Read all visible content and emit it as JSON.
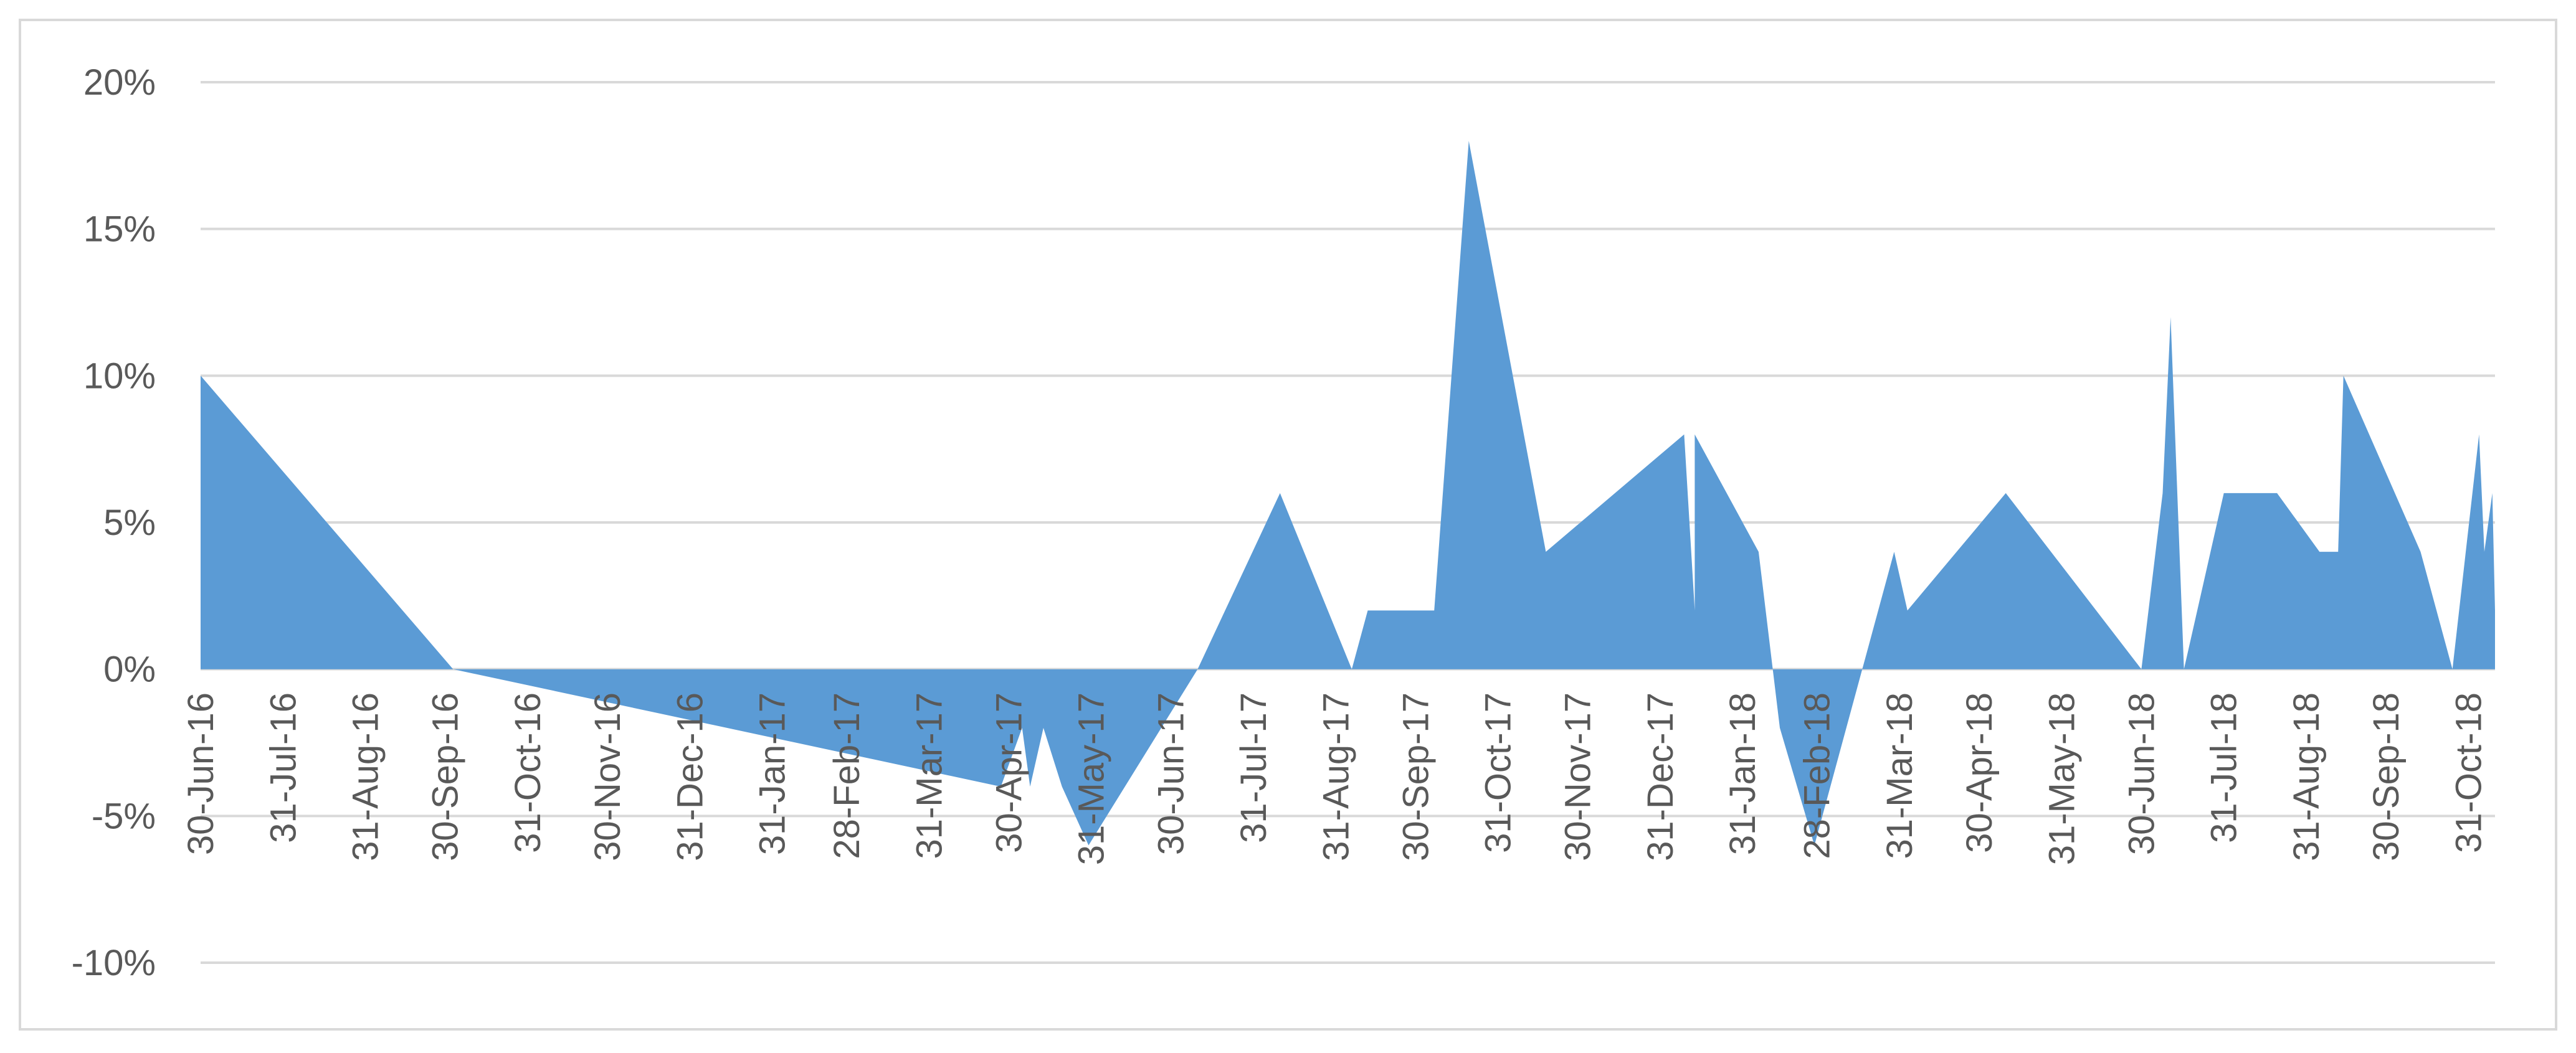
{
  "chart_data": {
    "type": "area",
    "title": "",
    "xlabel": "",
    "ylabel": "",
    "ylim": [
      -0.1,
      0.2
    ],
    "xlim": [
      "2016-06-30",
      "2018-11-10"
    ],
    "grid": true,
    "legend": "none",
    "fill_color": "#5b9bd5",
    "y_ticks": [
      {
        "value": 0.2,
        "label": "20%"
      },
      {
        "value": 0.15,
        "label": "15%"
      },
      {
        "value": 0.1,
        "label": "10%"
      },
      {
        "value": 0.05,
        "label": "5%"
      },
      {
        "value": 0.0,
        "label": "0%"
      },
      {
        "value": -0.05,
        "label": "-5%"
      },
      {
        "value": -0.1,
        "label": "-10%"
      }
    ],
    "x_ticks": [
      {
        "date": "2016-06-30",
        "label": "30-Jun-16"
      },
      {
        "date": "2016-07-31",
        "label": "31-Jul-16"
      },
      {
        "date": "2016-08-31",
        "label": "31-Aug-16"
      },
      {
        "date": "2016-09-30",
        "label": "30-Sep-16"
      },
      {
        "date": "2016-10-31",
        "label": "31-Oct-16"
      },
      {
        "date": "2016-11-30",
        "label": "30-Nov-16"
      },
      {
        "date": "2016-12-31",
        "label": "31-Dec-16"
      },
      {
        "date": "2017-01-31",
        "label": "31-Jan-17"
      },
      {
        "date": "2017-02-28",
        "label": "28-Feb-17"
      },
      {
        "date": "2017-03-31",
        "label": "31-Mar-17"
      },
      {
        "date": "2017-04-30",
        "label": "30-Apr-17"
      },
      {
        "date": "2017-05-31",
        "label": "31-May-17"
      },
      {
        "date": "2017-06-30",
        "label": "30-Jun-17"
      },
      {
        "date": "2017-07-31",
        "label": "31-Jul-17"
      },
      {
        "date": "2017-08-31",
        "label": "31-Aug-17"
      },
      {
        "date": "2017-09-30",
        "label": "30-Sep-17"
      },
      {
        "date": "2017-10-31",
        "label": "31-Oct-17"
      },
      {
        "date": "2017-11-30",
        "label": "30-Nov-17"
      },
      {
        "date": "2017-12-31",
        "label": "31-Dec-17"
      },
      {
        "date": "2018-01-31",
        "label": "31-Jan-18"
      },
      {
        "date": "2018-02-28",
        "label": "28-Feb-18"
      },
      {
        "date": "2018-03-31",
        "label": "31-Mar-18"
      },
      {
        "date": "2018-04-30",
        "label": "30-Apr-18"
      },
      {
        "date": "2018-05-31",
        "label": "31-May-18"
      },
      {
        "date": "2018-06-30",
        "label": "30-Jun-18"
      },
      {
        "date": "2018-07-31",
        "label": "31-Jul-18"
      },
      {
        "date": "2018-08-31",
        "label": "31-Aug-18"
      },
      {
        "date": "2018-09-30",
        "label": "30-Sep-18"
      },
      {
        "date": "2018-10-31",
        "label": "31-Oct-18"
      }
    ],
    "series": [
      {
        "points": [
          {
            "x": "2016-06-30",
            "y": 0.1
          },
          {
            "x": "2016-10-03",
            "y": 0.0
          },
          {
            "x": "2017-04-27",
            "y": -0.04
          },
          {
            "x": "2017-05-05",
            "y": -0.02
          },
          {
            "x": "2017-05-08",
            "y": -0.04
          },
          {
            "x": "2017-05-13",
            "y": -0.02
          },
          {
            "x": "2017-05-20",
            "y": -0.04
          },
          {
            "x": "2017-05-30",
            "y": -0.06
          },
          {
            "x": "2017-07-10",
            "y": 0.0
          },
          {
            "x": "2017-08-10",
            "y": 0.06
          },
          {
            "x": "2017-09-06",
            "y": 0.0
          },
          {
            "x": "2017-09-12",
            "y": 0.02
          },
          {
            "x": "2017-10-07",
            "y": 0.02
          },
          {
            "x": "2017-10-20",
            "y": 0.18
          },
          {
            "x": "2017-11-18",
            "y": 0.04
          },
          {
            "x": "2018-01-09",
            "y": 0.08
          },
          {
            "x": "2018-01-13",
            "y": 0.02
          },
          {
            "x": "2018-01-13",
            "y": 0.08
          },
          {
            "x": "2018-02-06",
            "y": 0.04
          },
          {
            "x": "2018-02-14",
            "y": -0.02
          },
          {
            "x": "2018-02-27",
            "y": -0.06
          },
          {
            "x": "2018-03-29",
            "y": 0.04
          },
          {
            "x": "2018-04-03",
            "y": 0.02
          },
          {
            "x": "2018-05-10",
            "y": 0.06
          },
          {
            "x": "2018-06-30",
            "y": 0.0
          },
          {
            "x": "2018-07-08",
            "y": 0.06
          },
          {
            "x": "2018-07-11",
            "y": 0.12
          },
          {
            "x": "2018-07-16",
            "y": 0.0
          },
          {
            "x": "2018-07-31",
            "y": 0.06
          },
          {
            "x": "2018-08-20",
            "y": 0.06
          },
          {
            "x": "2018-09-05",
            "y": 0.04
          },
          {
            "x": "2018-09-12",
            "y": 0.04
          },
          {
            "x": "2018-09-14",
            "y": 0.1
          },
          {
            "x": "2018-10-13",
            "y": 0.04
          },
          {
            "x": "2018-10-25",
            "y": 0.0
          },
          {
            "x": "2018-11-04",
            "y": 0.08
          },
          {
            "x": "2018-11-06",
            "y": 0.04
          },
          {
            "x": "2018-11-09",
            "y": 0.06
          },
          {
            "x": "2018-11-10",
            "y": 0.02
          },
          {
            "x": "2018-11-10",
            "y": 0.0
          }
        ]
      }
    ]
  }
}
